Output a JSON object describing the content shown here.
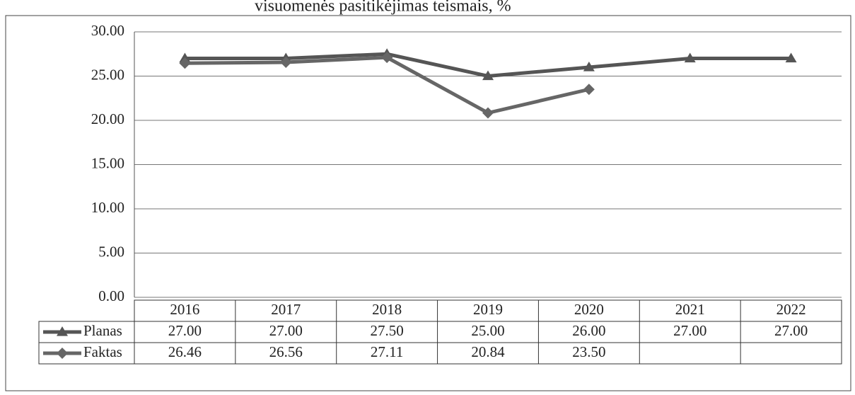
{
  "chart_data": {
    "type": "line",
    "title": "visuomenės pasitikėjimas teismais, %",
    "categories": [
      "2016",
      "2017",
      "2018",
      "2019",
      "2020",
      "2021",
      "2022"
    ],
    "series": [
      {
        "name": "Planas",
        "color": "#555555",
        "marker": "triangle",
        "values": [
          27,
          27,
          27.5,
          25,
          26,
          27,
          27
        ],
        "value_labels": [
          "27.00",
          "27.00",
          "27.50",
          "25.00",
          "26.00",
          "27.00",
          "27.00"
        ]
      },
      {
        "name": "Faktas",
        "color": "#666666",
        "marker": "diamond",
        "values": [
          26.46,
          26.56,
          27.11,
          20.84,
          23.5,
          null,
          null
        ],
        "value_labels": [
          "26.46",
          "26.56",
          "27.11",
          "20.84",
          "23.50",
          null,
          null
        ]
      }
    ],
    "ylim": [
      0,
      30
    ],
    "yticks": [
      {
        "value": 0,
        "label": "0.00"
      },
      {
        "value": 5,
        "label": "5.00"
      },
      {
        "value": 10,
        "label": "10.00"
      },
      {
        "value": 15,
        "label": "15.00"
      },
      {
        "value": 20,
        "label": "20.00"
      },
      {
        "value": 25,
        "label": "25.00"
      },
      {
        "value": 30,
        "label": "30.00"
      }
    ],
    "grid": true
  }
}
